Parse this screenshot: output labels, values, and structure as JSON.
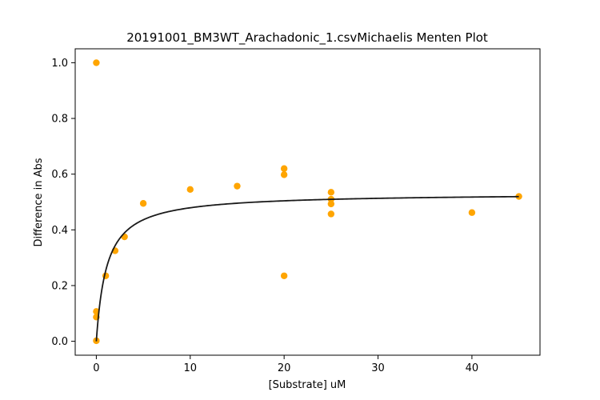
{
  "chart_data": {
    "type": "scatter",
    "title": "20191001_BM3WT_Arachadonic_1.csvMichaelis Menten Plot",
    "xlabel": "[Substrate] uM",
    "ylabel": "Difference in Abs",
    "xlim": [
      -2.25,
      47.25
    ],
    "ylim": [
      -0.05,
      1.05
    ],
    "xticks": [
      0,
      10,
      20,
      30,
      40
    ],
    "xtick_labels": [
      "0",
      "10",
      "20",
      "30",
      "40"
    ],
    "yticks": [
      0.0,
      0.2,
      0.4,
      0.6,
      0.8,
      1.0
    ],
    "ytick_labels": [
      "0.0",
      "0.2",
      "0.4",
      "0.6",
      "0.8",
      "1.0"
    ],
    "grid": false,
    "colors": {
      "points": "#FFA500",
      "fit": "#1a1a1a"
    },
    "points": [
      {
        "x": 0,
        "y": 1.0
      },
      {
        "x": 0,
        "y": 0.107
      },
      {
        "x": 0,
        "y": 0.087
      },
      {
        "x": 0,
        "y": 0.002
      },
      {
        "x": 1,
        "y": 0.235
      },
      {
        "x": 2,
        "y": 0.325
      },
      {
        "x": 3,
        "y": 0.375
      },
      {
        "x": 5,
        "y": 0.495
      },
      {
        "x": 10,
        "y": 0.545
      },
      {
        "x": 15,
        "y": 0.557
      },
      {
        "x": 20,
        "y": 0.62
      },
      {
        "x": 20,
        "y": 0.598
      },
      {
        "x": 20,
        "y": 0.235
      },
      {
        "x": 25,
        "y": 0.535
      },
      {
        "x": 25,
        "y": 0.51
      },
      {
        "x": 25,
        "y": 0.493
      },
      {
        "x": 25,
        "y": 0.457
      },
      {
        "x": 40,
        "y": 0.462
      },
      {
        "x": 45,
        "y": 0.52
      }
    ],
    "fit": {
      "model": "michaelis-menten",
      "vmax": 0.532,
      "km": 1.1,
      "x_range": [
        0,
        45
      ]
    }
  }
}
